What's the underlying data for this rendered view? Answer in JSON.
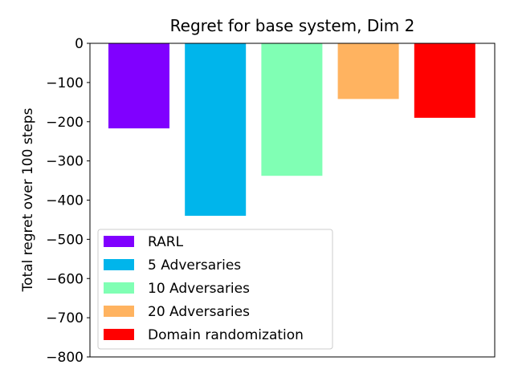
{
  "chart_data": {
    "type": "bar",
    "title": "Regret for base system, Dim 2",
    "xlabel": "",
    "ylabel": "Total regret over 100 steps",
    "ylim": [
      -800,
      0
    ],
    "yticks": [
      0,
      -100,
      -200,
      -300,
      -400,
      -500,
      -600,
      -700,
      -800
    ],
    "ytick_labels": [
      "0",
      "−100",
      "−200",
      "−300",
      "−400",
      "−500",
      "−600",
      "−700",
      "−800"
    ],
    "legend_position": "lower-left",
    "grid": false,
    "series": [
      {
        "name": "RARL",
        "value": -217,
        "color": "#8000ff"
      },
      {
        "name": "5 Adversaries",
        "value": -440,
        "color": "#00b5eb"
      },
      {
        "name": "10 Adversaries",
        "value": -338,
        "color": "#80ffb4"
      },
      {
        "name": "20 Adversaries",
        "value": -142,
        "color": "#ffb360"
      },
      {
        "name": "Domain randomization",
        "value": -190,
        "color": "#ff0000"
      }
    ]
  }
}
